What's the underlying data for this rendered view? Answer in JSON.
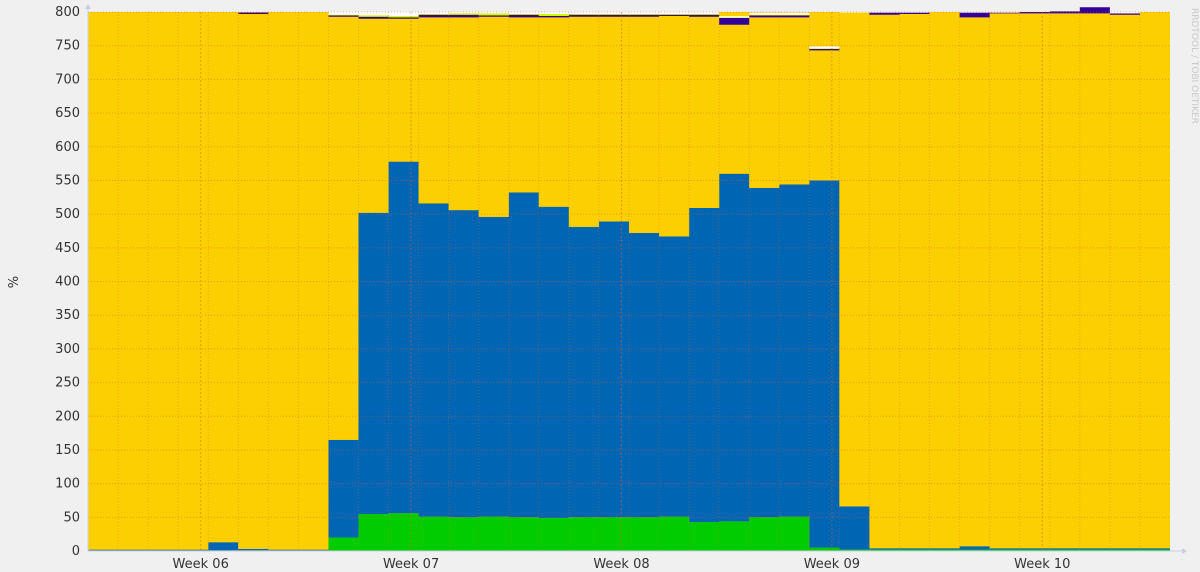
{
  "chart_data": {
    "type": "area",
    "title": "",
    "xlabel": "",
    "ylabel": "%",
    "ylim": [
      0,
      800
    ],
    "yticks": [
      0,
      50,
      100,
      150,
      200,
      250,
      300,
      350,
      400,
      450,
      500,
      550,
      600,
      650,
      700,
      750,
      800
    ],
    "x_tick_labels": [
      "Week 06",
      "Week 07",
      "Week 08",
      "Week 09",
      "Week 10"
    ],
    "x_tick_index": [
      3.75,
      10.75,
      17.75,
      24.75,
      31.75
    ],
    "period_count": 36,
    "grid": true,
    "legend": "none",
    "watermark": "RRDTOOL / TOBI OETIKER",
    "background_color": "#fccf03",
    "series": [
      {
        "color": "#00cc00",
        "values": [
          1,
          1,
          1,
          1,
          1,
          1,
          1,
          1,
          20,
          55,
          56,
          51,
          50,
          51,
          50,
          49,
          50,
          50,
          50,
          51,
          43,
          44,
          50,
          51,
          5,
          2,
          2,
          2,
          2,
          2,
          2,
          2,
          2,
          2,
          2,
          2
        ]
      },
      {
        "color": "#0066b3",
        "values": [
          1,
          1,
          1,
          1,
          12,
          2,
          1,
          1,
          145,
          447,
          522,
          465,
          456,
          445,
          482,
          462,
          431,
          439,
          422,
          416,
          466,
          516,
          489,
          493,
          545,
          64,
          2,
          2,
          2,
          5,
          2,
          2,
          2,
          2,
          2,
          2
        ]
      },
      {
        "color": "#fccf03",
        "values": [
          798,
          798,
          798,
          798,
          785,
          794,
          798,
          798,
          628,
          288,
          212,
          276,
          286,
          297,
          260,
          281,
          312,
          304,
          321,
          327,
          284,
          221,
          253,
          248,
          193,
          733,
          792,
          793,
          796,
          785,
          794,
          794,
          794,
          794,
          792,
          796
        ]
      },
      {
        "color": "#330099",
        "values": [
          0,
          0,
          0,
          0,
          0,
          2,
          0,
          0,
          2,
          3,
          2,
          4,
          4,
          2,
          4,
          2,
          3,
          3,
          3,
          2,
          3,
          10,
          3,
          3,
          2,
          0,
          3,
          2,
          0,
          7,
          1,
          2,
          3,
          9,
          2,
          0
        ]
      },
      {
        "color": "#ccff00",
        "values": [
          0,
          0,
          0,
          0,
          0,
          0,
          0,
          0,
          1,
          2,
          2,
          1,
          2,
          3,
          1,
          3,
          1,
          1,
          1,
          1,
          1,
          1,
          1,
          1,
          1,
          0,
          0,
          0,
          0,
          0,
          0,
          0,
          0,
          0,
          0,
          0
        ]
      },
      {
        "color": "#ffffff",
        "values": [
          0,
          0,
          0,
          0,
          0,
          0,
          0,
          0,
          4,
          5,
          6,
          3,
          2,
          2,
          3,
          3,
          3,
          3,
          3,
          3,
          3,
          2,
          3,
          3,
          3,
          1,
          1,
          1,
          0,
          1,
          1,
          0,
          0,
          0,
          2,
          0
        ]
      }
    ]
  }
}
